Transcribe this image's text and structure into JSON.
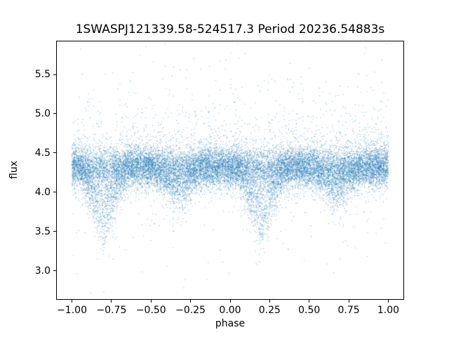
{
  "chart_data": {
    "type": "scatter",
    "title": "1SWASPJ121339.58-524517.3 Period 20236.54883s",
    "xlabel": "phase",
    "ylabel": "flux",
    "xlim": [
      -1.1,
      1.1
    ],
    "ylim": [
      2.63,
      5.93
    ],
    "xticks": [
      -1.0,
      -0.75,
      -0.5,
      -0.25,
      0.0,
      0.25,
      0.5,
      0.75,
      1.0
    ],
    "xtick_labels": [
      "−1.00",
      "−0.75",
      "−0.50",
      "−0.25",
      "0.00",
      "0.25",
      "0.50",
      "0.75",
      "1.00"
    ],
    "yticks": [
      3.0,
      3.5,
      4.0,
      4.5,
      5.0,
      5.5
    ],
    "ytick_labels": [
      "3.0",
      "3.5",
      "4.0",
      "4.5",
      "5.0",
      "5.5"
    ],
    "grid": false,
    "legend": null,
    "marker_color": "#1f77b4",
    "marker_alpha": 0.45,
    "marker_size_px": 1.2,
    "n_points": 20000,
    "distribution": {
      "comment": "Folded eclipsing-binary light curve: dense band at baseline flux with V-shaped eclipse clouds repeating each cycle; deep minima near phase -0.80/+0.20 reaching flux ~3.35, shallow minima near -0.33/+0.67 reaching ~3.85, sparse outliers up to ~5.8 and down to ~2.8.",
      "seed": 42,
      "x_range": [
        -1.0,
        1.0
      ],
      "baseline_flux": 4.32,
      "band_sigma": 0.13,
      "upper_outlier_prob": 0.1,
      "upper_outlier_scale": 0.3,
      "upper_outlier_max": 1.5,
      "lower_outlier_prob": 0.03,
      "lower_outlier_scale": 0.3,
      "lower_outlier_max": 1.55,
      "eclipses": [
        {
          "phase_center": 0.2,
          "half_width": 0.15,
          "depth": 0.98,
          "affected_fraction": 0.55
        },
        {
          "phase_center": 0.67,
          "half_width": 0.16,
          "depth": 0.45,
          "affected_fraction": 0.55
        }
      ]
    }
  }
}
